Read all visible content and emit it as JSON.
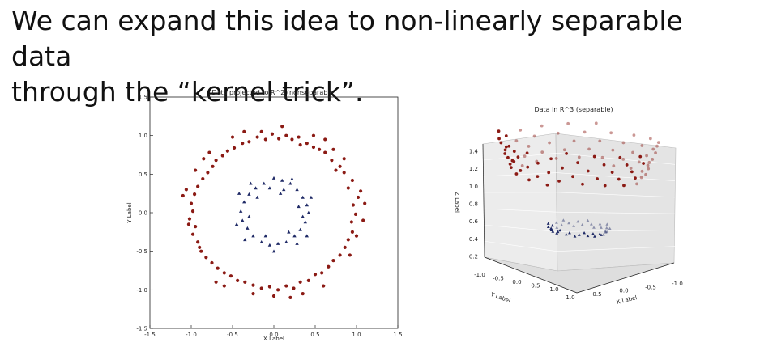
{
  "slide": {
    "title_line1": "We can expand this idea to non-linearly separable data",
    "title_line2": "through the “kernel trick”."
  },
  "colors": {
    "outer_ring": "#8b1a14",
    "inner_ring": "#1f2a66",
    "axis": "#222222",
    "pane": "#e9e9e9"
  },
  "chart_data": [
    {
      "type": "scatter",
      "title": "Data projected to R^2 (nonseparable)",
      "xlabel": "X Label",
      "ylabel": "Y Label",
      "xlim": [
        -1.5,
        1.5
      ],
      "ylim": [
        -1.5,
        1.5
      ],
      "xticks": [
        "-1.5",
        "-1.0",
        "-0.5",
        "0.0",
        "0.5",
        "1.0",
        "1.5"
      ],
      "yticks": [
        "1.5",
        "1.0",
        "0.5",
        "0.0",
        "-0.5",
        "-1.0",
        "-1.5"
      ],
      "grid": false,
      "series": [
        {
          "marker": "circle",
          "color": "#8b1a14",
          "points": [
            [
              1.02,
              0.2
            ],
            [
              0.96,
              0.1
            ],
            [
              0.99,
              -0.02
            ],
            [
              0.94,
              -0.12
            ],
            [
              1.05,
              0.28
            ],
            [
              0.9,
              0.32
            ],
            [
              0.95,
              0.42
            ],
            [
              0.85,
              0.52
            ],
            [
              0.8,
              0.6
            ],
            [
              0.75,
              0.55
            ],
            [
              0.7,
              0.68
            ],
            [
              0.62,
              0.78
            ],
            [
              0.55,
              0.82
            ],
            [
              0.48,
              0.85
            ],
            [
              0.4,
              0.9
            ],
            [
              0.32,
              0.88
            ],
            [
              0.22,
              0.95
            ],
            [
              0.15,
              1.0
            ],
            [
              0.06,
              0.96
            ],
            [
              -0.02,
              1.02
            ],
            [
              -0.1,
              0.95
            ],
            [
              -0.2,
              0.98
            ],
            [
              -0.3,
              0.92
            ],
            [
              -0.38,
              0.9
            ],
            [
              -0.48,
              0.84
            ],
            [
              -0.56,
              0.8
            ],
            [
              -0.62,
              0.74
            ],
            [
              -0.7,
              0.68
            ],
            [
              -0.74,
              0.6
            ],
            [
              -0.8,
              0.52
            ],
            [
              -0.86,
              0.44
            ],
            [
              -0.92,
              0.34
            ],
            [
              -0.96,
              0.24
            ],
            [
              -1.0,
              0.12
            ],
            [
              -0.98,
              0.02
            ],
            [
              -1.02,
              -0.08
            ],
            [
              -0.95,
              -0.18
            ],
            [
              -0.98,
              -0.28
            ],
            [
              -0.92,
              -0.38
            ],
            [
              -0.88,
              -0.5
            ],
            [
              -0.82,
              -0.58
            ],
            [
              -0.75,
              -0.65
            ],
            [
              -0.68,
              -0.72
            ],
            [
              -0.6,
              -0.78
            ],
            [
              -0.52,
              -0.82
            ],
            [
              -0.44,
              -0.88
            ],
            [
              -0.35,
              -0.9
            ],
            [
              -0.25,
              -0.94
            ],
            [
              -0.15,
              -0.98
            ],
            [
              -0.05,
              -0.96
            ],
            [
              0.05,
              -1.0
            ],
            [
              0.15,
              -0.95
            ],
            [
              0.24,
              -0.98
            ],
            [
              0.32,
              -0.9
            ],
            [
              0.42,
              -0.88
            ],
            [
              0.5,
              -0.8
            ],
            [
              0.58,
              -0.78
            ],
            [
              0.66,
              -0.7
            ],
            [
              0.72,
              -0.62
            ],
            [
              0.8,
              -0.55
            ],
            [
              0.86,
              -0.45
            ],
            [
              0.9,
              -0.35
            ],
            [
              0.95,
              -0.25
            ],
            [
              1.1,
              0.12
            ],
            [
              -1.06,
              0.3
            ],
            [
              -1.03,
              -0.15
            ],
            [
              0.1,
              1.12
            ],
            [
              -0.36,
              1.05
            ],
            [
              0.72,
              0.82
            ],
            [
              -0.7,
              -0.9
            ],
            [
              0.35,
              -1.05
            ],
            [
              0.6,
              -0.95
            ],
            [
              -0.85,
              0.7
            ],
            [
              1.0,
              -0.3
            ],
            [
              -1.1,
              0.22
            ],
            [
              0.0,
              -1.08
            ],
            [
              0.85,
              0.7
            ],
            [
              -0.5,
              0.98
            ],
            [
              0.48,
              1.0
            ],
            [
              -0.95,
              0.55
            ],
            [
              0.92,
              -0.55
            ],
            [
              -0.6,
              -0.95
            ],
            [
              0.2,
              -1.1
            ],
            [
              -0.25,
              -1.05
            ],
            [
              1.08,
              -0.1
            ],
            [
              -0.78,
              0.78
            ],
            [
              0.62,
              0.95
            ],
            [
              -0.9,
              -0.45
            ],
            [
              0.3,
              0.98
            ],
            [
              -0.15,
              1.05
            ]
          ]
        },
        {
          "marker": "triangle",
          "color": "#1f2a66",
          "points": [
            [
              0.0,
              0.45
            ],
            [
              0.1,
              0.42
            ],
            [
              0.2,
              0.38
            ],
            [
              0.28,
              0.3
            ],
            [
              0.35,
              0.2
            ],
            [
              0.4,
              0.1
            ],
            [
              0.42,
              0.0
            ],
            [
              0.38,
              -0.12
            ],
            [
              0.32,
              -0.22
            ],
            [
              0.25,
              -0.3
            ],
            [
              0.15,
              -0.38
            ],
            [
              0.05,
              -0.4
            ],
            [
              -0.05,
              -0.42
            ],
            [
              -0.15,
              -0.38
            ],
            [
              -0.25,
              -0.3
            ],
            [
              -0.32,
              -0.2
            ],
            [
              -0.38,
              -0.1
            ],
            [
              -0.4,
              0.02
            ],
            [
              -0.36,
              0.14
            ],
            [
              -0.3,
              0.24
            ],
            [
              -0.22,
              0.32
            ],
            [
              -0.12,
              0.38
            ],
            [
              0.12,
              0.3
            ],
            [
              0.3,
              0.08
            ],
            [
              -0.3,
              -0.05
            ],
            [
              -0.2,
              0.2
            ],
            [
              0.18,
              -0.25
            ],
            [
              -0.1,
              -0.3
            ],
            [
              0.35,
              -0.05
            ],
            [
              0.22,
              0.44
            ],
            [
              -0.28,
              0.38
            ],
            [
              0.45,
              0.2
            ],
            [
              -0.45,
              -0.15
            ],
            [
              0.0,
              -0.5
            ],
            [
              0.28,
              -0.4
            ],
            [
              -0.35,
              -0.35
            ],
            [
              0.08,
              0.25
            ],
            [
              -0.05,
              0.32
            ],
            [
              0.4,
              -0.3
            ],
            [
              -0.42,
              0.25
            ]
          ]
        }
      ]
    },
    {
      "type": "scatter3d",
      "title": "Data in R^3 (separable)",
      "xlabel": "X Label",
      "ylabel": "Y Label",
      "zlabel": "Z Label",
      "xticks": [
        "1.0",
        "0.5",
        "0.0",
        "-0.5",
        "-1.0"
      ],
      "yticks": [
        "-1.0",
        "-0.5",
        "0.0",
        "0.5",
        "1.0"
      ],
      "zticks": [
        "0.2",
        "0.4",
        "0.6",
        "0.8",
        "1.0",
        "1.2",
        "1.4"
      ],
      "zlim": [
        0.0,
        1.5
      ],
      "series": [
        {
          "marker": "circle",
          "color": "#8b1a14",
          "ring_radius": 1.0,
          "count": 90
        },
        {
          "marker": "triangle",
          "color": "#1f2a66",
          "ring_radius": 0.4,
          "count": 40
        }
      ]
    }
  ]
}
